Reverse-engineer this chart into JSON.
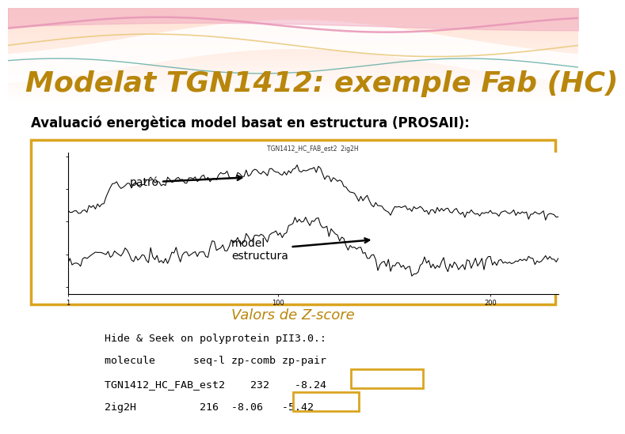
{
  "title": "Modelat TGN1412: exemple Fab (HC)",
  "subtitle": "Avaluació energètica model basat en estructura (PROSAII):",
  "chart_title": "TGN1412_HC_FAB_est2  2ig2H",
  "zscore_label": "Valors de Z-score",
  "annotation_patron": "patró",
  "annotation_model": "model\nestructura",
  "table_lines": [
    "Hide & Seek on polyprotein pII3.0.:",
    "molecule      seq-l zp-comb zp-pair",
    "TGN1412_HC_FAB_est2    232    -8.24",
    "2ig2H          216  -8.06   -5.42"
  ],
  "title_color": "#B8860B",
  "background_color": "#FFFFFF",
  "box_border_color": "#DAA520",
  "zscore_color": "#B8860B",
  "header_top_color": "#F0B0A0",
  "header_pink_wave": "#E080A0",
  "header_orange_wave": "#F0C070",
  "header_teal_wave": "#50A0A0",
  "header_white_wave": "#FFFFFF"
}
